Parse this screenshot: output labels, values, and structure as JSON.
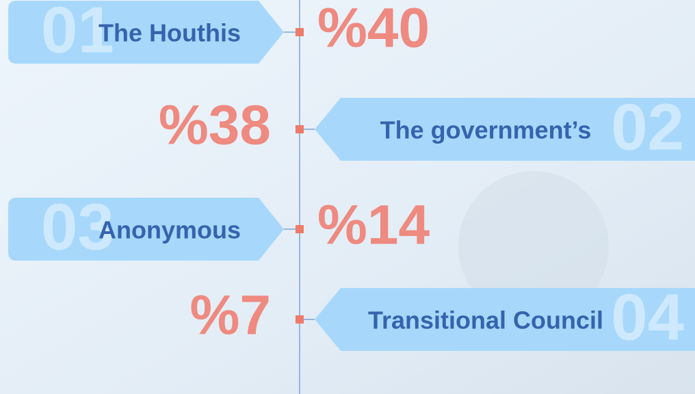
{
  "items": [
    {
      "index": "01",
      "name": "The Houthis",
      "value": "%40"
    },
    {
      "index": "02",
      "name": "The government’s",
      "value": "%38"
    },
    {
      "index": "03",
      "name": "Anonymous",
      "value": "%14"
    },
    {
      "index": "04",
      "name": "Transitional Council",
      "value": "%7"
    }
  ]
}
